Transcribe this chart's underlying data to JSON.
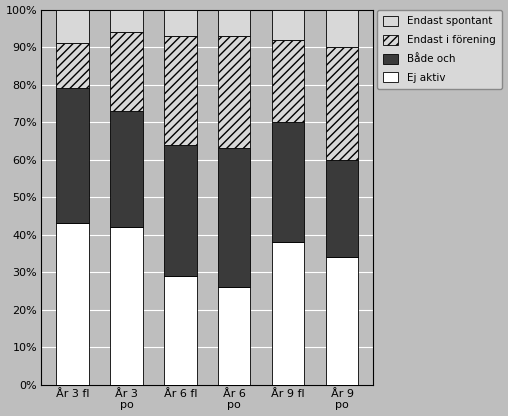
{
  "categories": [
    "År 3 fl",
    "År 3\npo",
    "År 6 fl",
    "År 6\npo",
    "År 9 fl",
    "År 9\npo"
  ],
  "series": {
    "Ej aktiv": [
      43,
      42,
      29,
      26,
      38,
      34
    ],
    "Både och": [
      36,
      31,
      35,
      37,
      32,
      26
    ],
    "Endast i förening": [
      12,
      21,
      29,
      30,
      22,
      30
    ],
    "Endast spontant": [
      9,
      6,
      7,
      7,
      8,
      10
    ]
  },
  "face_colors": {
    "Ej aktiv": "#ffffff",
    "Både och": "#3a3a3a",
    "Endast i förening": "#d8d8d8",
    "Endast spontant": "#d8d8d8"
  },
  "hatches": {
    "Ej aktiv": "",
    "Både och": "",
    "Endast i förening": "////",
    "Endast spontant": "====="
  },
  "legend_order": [
    "Endast spontant",
    "Endast i förening",
    "Både och",
    "Ej aktiv"
  ],
  "background_color": "#bebebe",
  "plot_area_color": "#bebebe",
  "bar_edge_color": "#000000",
  "grid_color": "#ffffff",
  "ylim": [
    0,
    100
  ],
  "ytick_values": [
    0,
    10,
    20,
    30,
    40,
    50,
    60,
    70,
    80,
    90,
    100
  ],
  "ytick_labels": [
    "0%",
    "10%",
    "20%",
    "30%",
    "40%",
    "50%",
    "60%",
    "70%",
    "80%",
    "90%",
    "100%"
  ]
}
